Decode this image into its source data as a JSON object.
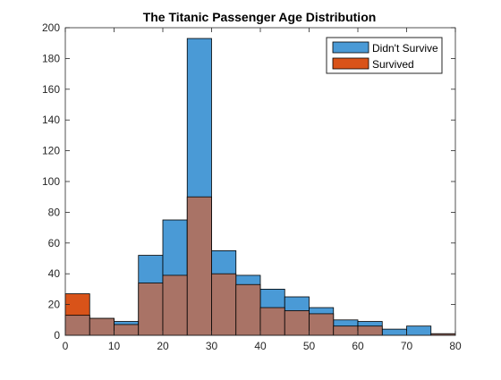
{
  "chart_data": {
    "type": "bar",
    "title": "The Titanic Passenger Age Distribution",
    "xlabel": "",
    "ylabel": "",
    "bin_edges": [
      0,
      5,
      10,
      15,
      20,
      25,
      30,
      35,
      40,
      45,
      50,
      55,
      60,
      65,
      70,
      75,
      80
    ],
    "xlim": [
      0,
      80
    ],
    "ylim": [
      0,
      200
    ],
    "xticks": [
      "0",
      "10",
      "20",
      "30",
      "40",
      "50",
      "60",
      "70",
      "80"
    ],
    "yticks": [
      "0",
      "20",
      "40",
      "60",
      "80",
      "100",
      "120",
      "140",
      "160",
      "180",
      "200"
    ],
    "legend_position": "top-right",
    "series": [
      {
        "name": "Didn't Survive",
        "color": "#4a9ad6",
        "values": [
          13,
          11,
          9,
          52,
          75,
          193,
          55,
          39,
          30,
          25,
          18,
          10,
          9,
          4,
          6,
          1
        ]
      },
      {
        "name": "Survived",
        "color": "#d95319",
        "values": [
          27,
          11,
          7,
          34,
          39,
          90,
          40,
          33,
          18,
          16,
          14,
          6,
          6,
          0,
          0,
          1
        ]
      }
    ],
    "overlap_color": "#a97366"
  }
}
